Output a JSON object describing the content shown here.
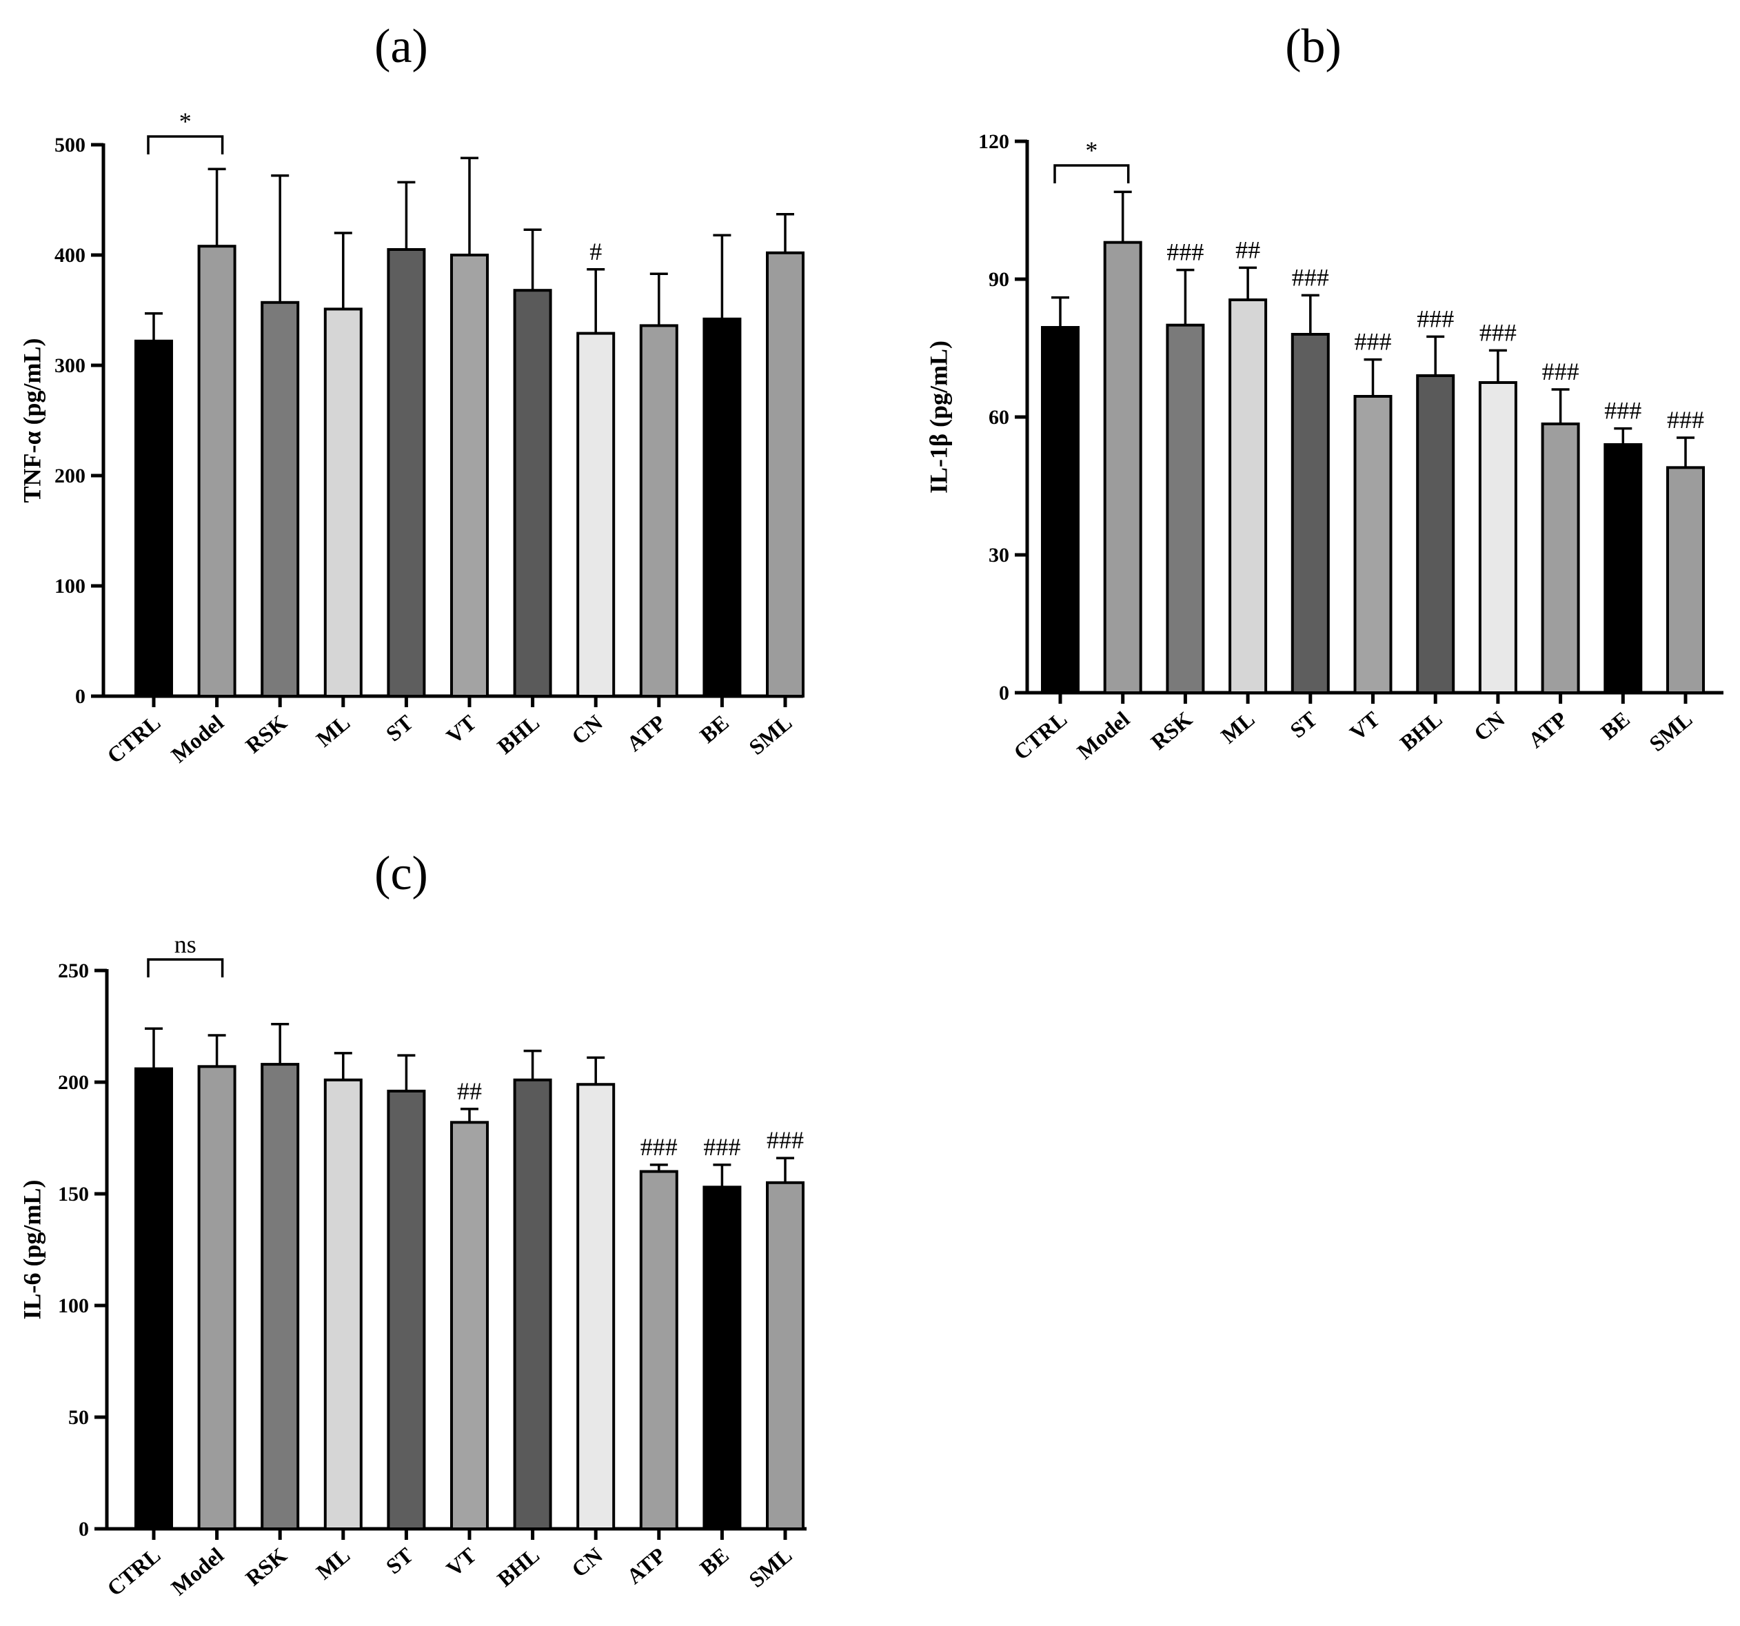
{
  "chart_data": [
    {
      "panel_label": "(a)",
      "type": "bar",
      "ylabel": "TNF-α (pg/mL)",
      "ylim": [
        0,
        500
      ],
      "yticks": [
        "0",
        "100",
        "200",
        "300",
        "400",
        "500"
      ],
      "categories": [
        "CTRL",
        "Model",
        "RSK",
        "ML",
        "ST",
        "VT",
        "BHL",
        "CN",
        "ATP",
        "BE",
        "SML"
      ],
      "values": [
        322,
        408,
        357,
        351,
        405,
        400,
        368,
        329,
        336,
        342,
        402
      ],
      "errors": [
        25,
        70,
        115,
        69,
        61,
        88,
        55,
        58,
        47,
        76,
        35
      ],
      "colors": [
        "#000000",
        "#9c9c9c",
        "#7a7a7a",
        "#d6d6d6",
        "#5e5e5e",
        "#a3a3a3",
        "#5a5a5a",
        "#e8e8e8",
        "#9e9e9e",
        "#000000",
        "#9c9c9c"
      ],
      "annotations": [
        "",
        "",
        "",
        "",
        "",
        "",
        "",
        "#",
        "",
        "",
        ""
      ],
      "bracket_label": "*"
    },
    {
      "panel_label": "(b)",
      "type": "bar",
      "ylabel": "IL-1β (pg/mL)",
      "ylim": [
        0,
        120
      ],
      "yticks": [
        "0",
        "30",
        "60",
        "90",
        "120"
      ],
      "categories": [
        "CTRL",
        "Model",
        "RSK",
        "ML",
        "ST",
        "VT",
        "BHL",
        "CN",
        "ATP",
        "BE",
        "SML"
      ],
      "values": [
        79.5,
        98,
        80,
        85.5,
        78,
        64.5,
        69,
        67.5,
        58.5,
        54,
        49
      ],
      "errors": [
        6.5,
        11,
        12,
        7,
        8.5,
        8,
        8.5,
        7,
        7.5,
        3.5,
        6.5
      ],
      "colors": [
        "#000000",
        "#9c9c9c",
        "#7a7a7a",
        "#d6d6d6",
        "#5e5e5e",
        "#a3a3a3",
        "#5a5a5a",
        "#e8e8e8",
        "#9e9e9e",
        "#000000",
        "#9c9c9c"
      ],
      "annotations": [
        "",
        "",
        "###",
        "##",
        "###",
        "###",
        "###",
        "###",
        "###",
        "###",
        "###"
      ],
      "bracket_label": "*"
    },
    {
      "panel_label": "(c)",
      "type": "bar",
      "ylabel": "IL-6 (pg/mL)",
      "ylim": [
        0,
        250
      ],
      "yticks": [
        "0",
        "50",
        "100",
        "150",
        "200",
        "250"
      ],
      "categories": [
        "CTRL",
        "Model",
        "RSK",
        "ML",
        "ST",
        "VT",
        "BHL",
        "CN",
        "ATP",
        "BE",
        "SML"
      ],
      "values": [
        206,
        207,
        208,
        201,
        196,
        182,
        201,
        199,
        160,
        153,
        155
      ],
      "errors": [
        18,
        14,
        18,
        12,
        16,
        6,
        13,
        12,
        3,
        10,
        11
      ],
      "colors": [
        "#000000",
        "#9c9c9c",
        "#7a7a7a",
        "#d6d6d6",
        "#5e5e5e",
        "#a3a3a3",
        "#5a5a5a",
        "#e8e8e8",
        "#9e9e9e",
        "#000000",
        "#9c9c9c"
      ],
      "annotations": [
        "",
        "",
        "",
        "",
        "",
        "##",
        "",
        "",
        "###",
        "###",
        "###"
      ],
      "bracket_label": "ns"
    }
  ]
}
